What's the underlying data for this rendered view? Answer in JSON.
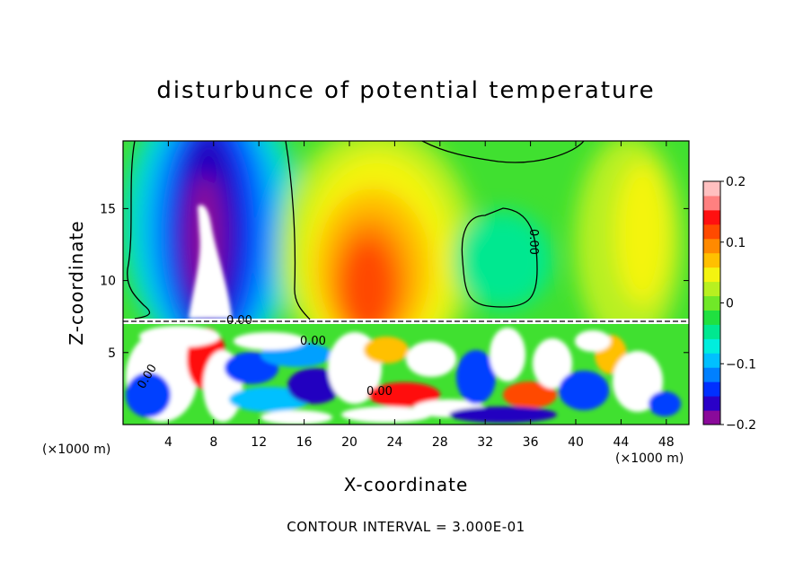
{
  "chart_data": {
    "type": "heatmap",
    "title": "disturbunce of potential temperature",
    "xlabel": "X-coordinate",
    "ylabel": "Z-coordinate",
    "x_unit_label": "(×1000 m)",
    "x_unit_label_right": "(×1000 m)",
    "x_ticks": [
      4,
      8,
      12,
      16,
      20,
      24,
      28,
      32,
      36,
      40,
      44,
      48
    ],
    "y_ticks": [
      5,
      10,
      15
    ],
    "xlim": [
      0,
      50
    ],
    "ylim": [
      0,
      19.7
    ],
    "colorbar": {
      "min": -0.2,
      "max": 0.2,
      "tick_values": [
        0.2,
        0.1,
        0,
        -0.1,
        -0.2
      ],
      "tick_labels": [
        "0.2",
        "0.1",
        "0",
        "−0.1",
        "−0.2"
      ],
      "colors": [
        "#8a0a9a",
        "#2a00c8",
        "#0030ff",
        "#0080ff",
        "#00c0ff",
        "#00eedd",
        "#00e890",
        "#20e040",
        "#70e828",
        "#b8f020",
        "#f4f410",
        "#ffc000",
        "#ff8a00",
        "#ff4a00",
        "#ff1010",
        "#ff8080",
        "#ffc0c0"
      ]
    },
    "contour_labels": [
      "0.00",
      "0.00",
      "0.00",
      "0.00",
      "0.00"
    ],
    "regions": [
      {
        "name": "negative-column",
        "x_range": [
          2,
          15
        ],
        "z_range": [
          7.5,
          19.7
        ],
        "min_value": -0.2
      },
      {
        "name": "positive-core",
        "x_range": [
          17,
          30
        ],
        "z_range": [
          7.5,
          19.7
        ],
        "max_value": 0.15
      },
      {
        "name": "turbulent-layer",
        "x_range": [
          0,
          50
        ],
        "z_range": [
          0,
          7.3
        ]
      }
    ],
    "annotation": "CONTOUR INTERVAL = 3.000E-01"
  }
}
